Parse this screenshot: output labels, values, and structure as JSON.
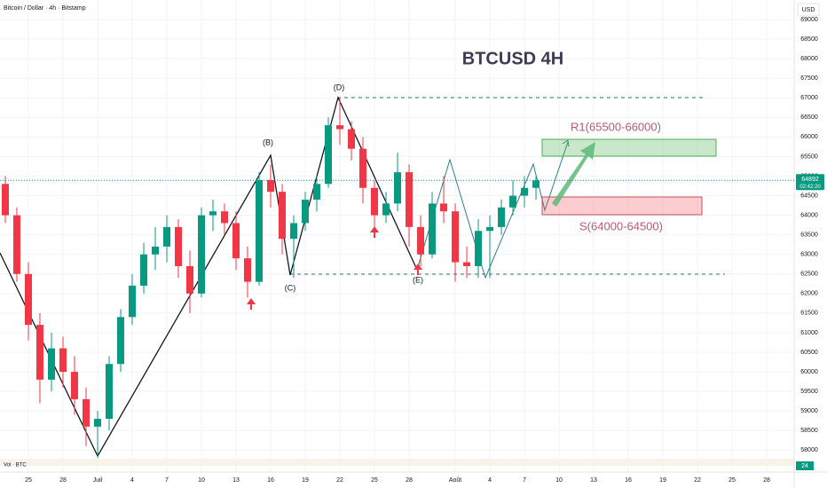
{
  "chart_data": {
    "type": "candlestick",
    "header": "Bitcoin / Dollar · 4h · Bitstamp",
    "title": "BTCUSD 4H",
    "currency": "USD",
    "wave_labels": [
      "(B)",
      "(C)",
      "(D)",
      "(E)"
    ],
    "zone_labels": [
      "R1(65500-66000)",
      "S(64000-64500)"
    ],
    "volume_label": "Vol · BTC",
    "volume_tick": "24",
    "last_price": 64892,
    "countdown": "02:42:20",
    "up_color": "#089981",
    "down_color": "#f23645",
    "x": [
      -2,
      -1,
      0,
      1,
      2,
      3,
      4,
      5,
      6,
      7,
      8,
      9,
      10,
      11,
      12,
      13,
      14,
      15,
      16,
      17,
      18,
      19,
      20,
      21,
      22,
      23,
      24,
      25,
      26,
      27,
      28,
      29,
      30,
      31,
      32,
      33,
      34,
      35,
      36,
      37,
      38,
      39,
      40,
      41,
      42,
      43,
      44
    ],
    "open": [
      64800,
      64000,
      62500,
      61200,
      59800,
      60600,
      60000,
      59300,
      58600,
      58800,
      60200,
      61400,
      62200,
      63000,
      63200,
      63700,
      62700,
      62000,
      64000,
      64100,
      63800,
      62900,
      62300,
      64900,
      64600,
      63400,
      63800,
      64400,
      64800,
      66300,
      66200,
      65700,
      64700,
      64000,
      64300,
      65100,
      63700,
      63000,
      64300,
      64100,
      62800,
      62700,
      63600,
      63700,
      64200,
      64500,
      64700
    ],
    "high": [
      65000,
      64200,
      62800,
      61500,
      61000,
      60900,
      60400,
      59600,
      59000,
      60400,
      61600,
      62500,
      63300,
      63700,
      64000,
      63900,
      63100,
      64200,
      64400,
      64300,
      64100,
      63200,
      65100,
      65300,
      64800,
      64000,
      64600,
      65000,
      66500,
      67000,
      66400,
      66000,
      64900,
      64600,
      65600,
      65300,
      64000,
      64600,
      65000,
      64300,
      63200,
      63900,
      64000,
      64400,
      64900,
      65000,
      65000
    ],
    "low": [
      63800,
      62300,
      60800,
      59200,
      59500,
      59600,
      58900,
      58100,
      57800,
      58500,
      60000,
      61200,
      62000,
      62600,
      62800,
      62400,
      61500,
      61900,
      63600,
      63500,
      62600,
      61900,
      62200,
      64200,
      63000,
      62400,
      63600,
      64100,
      64700,
      65800,
      65400,
      64300,
      63700,
      63800,
      64100,
      63200,
      62700,
      62900,
      63800,
      62300,
      62400,
      62400,
      62400,
      63500,
      64000,
      64200,
      64400
    ],
    "close": [
      64000,
      62500,
      61200,
      59800,
      60600,
      60000,
      59300,
      58600,
      58800,
      60200,
      61400,
      62200,
      63000,
      63200,
      63700,
      62700,
      62000,
      64000,
      64100,
      63800,
      62900,
      62300,
      64900,
      64600,
      63400,
      63800,
      64400,
      64800,
      66300,
      66200,
      65700,
      64700,
      64000,
      64300,
      65100,
      63700,
      63000,
      64300,
      64100,
      62800,
      62700,
      63600,
      63700,
      64200,
      64500,
      64700,
      64892
    ],
    "xlim": [
      -2.46,
      66.38
    ],
    "xticks": [
      {
        "value": 0,
        "label": "25"
      },
      {
        "value": 3,
        "label": "28"
      },
      {
        "value": 6,
        "label": "Juil"
      },
      {
        "value": 9,
        "label": "4"
      },
      {
        "value": 12,
        "label": "7"
      },
      {
        "value": 15,
        "label": "10"
      },
      {
        "value": 18,
        "label": "13"
      },
      {
        "value": 21,
        "label": "16"
      },
      {
        "value": 24,
        "label": "19"
      },
      {
        "value": 27,
        "label": "22"
      },
      {
        "value": 30,
        "label": "25"
      },
      {
        "value": 33,
        "label": "28"
      },
      {
        "value": 37,
        "label": "Août"
      },
      {
        "value": 40,
        "label": "4"
      },
      {
        "value": 43,
        "label": "7"
      },
      {
        "value": 46,
        "label": "10"
      },
      {
        "value": 49,
        "label": "13"
      },
      {
        "value": 52,
        "label": "16"
      },
      {
        "value": 55,
        "label": "19"
      },
      {
        "value": 58,
        "label": "22"
      },
      {
        "value": 61,
        "label": "25"
      },
      {
        "value": 64,
        "label": "28"
      }
    ],
    "ylim": [
      57780,
      69500
    ],
    "yticks": [
      58000,
      58500,
      59000,
      59500,
      60000,
      60500,
      61000,
      61500,
      62000,
      62500,
      63000,
      63500,
      64000,
      64500,
      65000,
      65500,
      66000,
      66500,
      67000,
      67500,
      68000,
      68500,
      69000
    ],
    "grid": true
  }
}
